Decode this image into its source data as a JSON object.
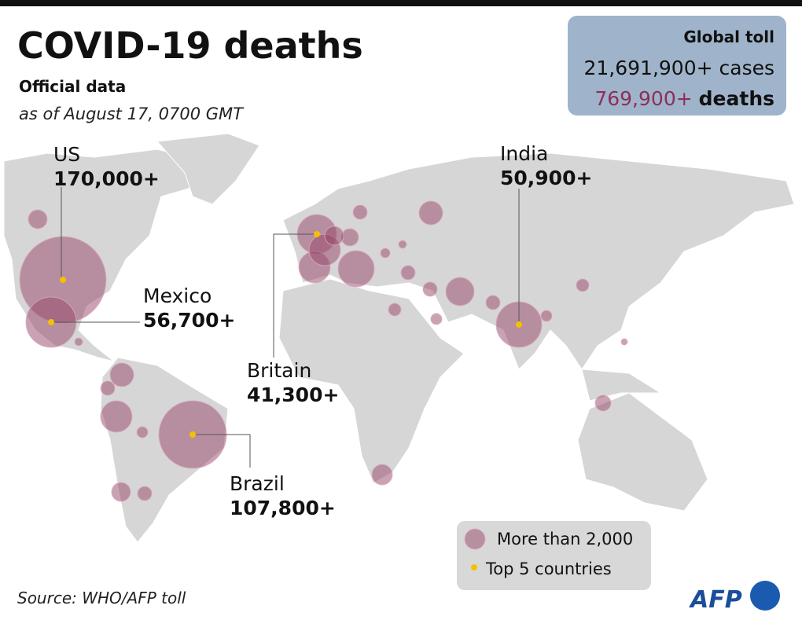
{
  "header": {
    "title": "COVID-19 deaths",
    "subtitle": "Official data",
    "date": "as of August 17, 0700 GMT"
  },
  "global_toll": {
    "title": "Global toll",
    "cases": "21,691,900+ cases",
    "deaths_value": "769,900+",
    "deaths_word": "deaths"
  },
  "callouts": [
    {
      "label": "US",
      "value": "170,000+"
    },
    {
      "label": "Mexico",
      "value": "56,700+"
    },
    {
      "label": "Britain",
      "value": "41,300+"
    },
    {
      "label": "India",
      "value": "50,900+"
    },
    {
      "label": "Brazil",
      "value": "107,800+"
    }
  ],
  "legend": {
    "bubble": "More than 2,000",
    "dot": "Top 5 countries"
  },
  "source": "Source: WHO/AFP toll",
  "logo": "AFP"
}
